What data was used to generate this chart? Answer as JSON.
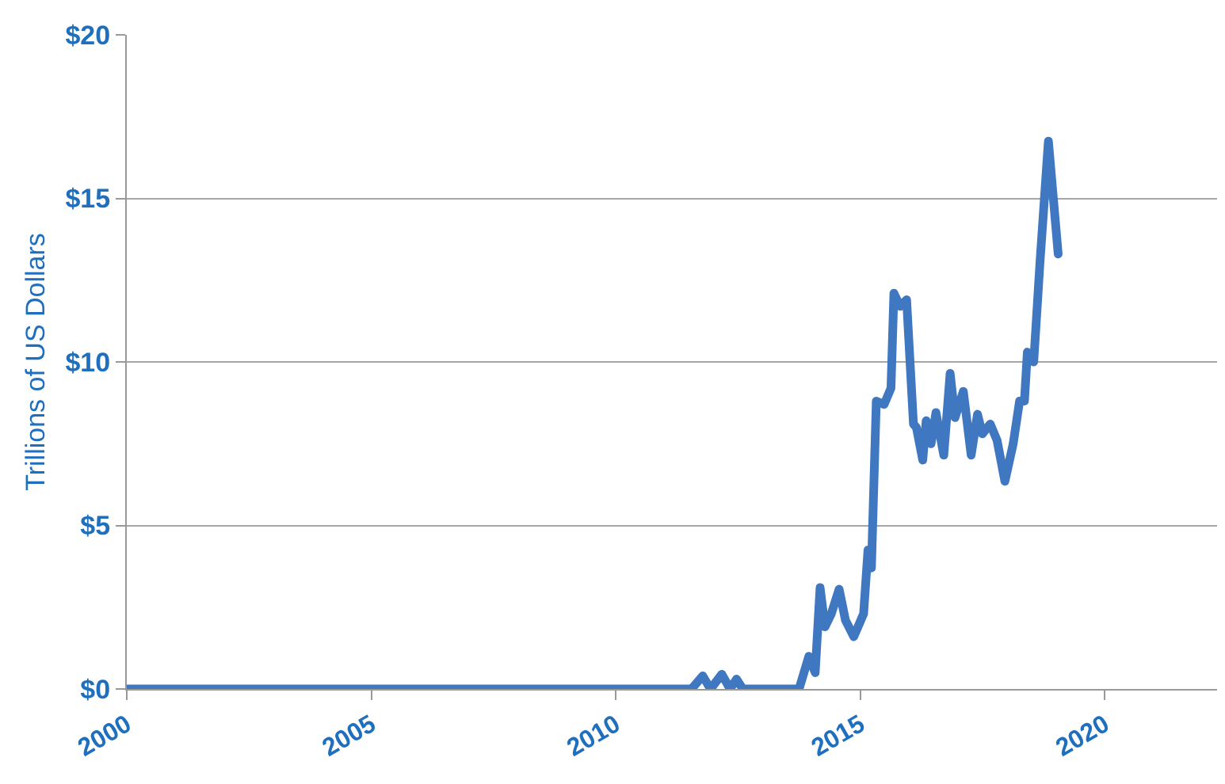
{
  "chart_data": {
    "type": "line",
    "ylabel": "Trillions of US Dollars",
    "x": [
      2000,
      2011.55,
      2011.78,
      2011.94,
      2012.17,
      2012.34,
      2012.47,
      2012.6,
      2013.75,
      2013.95,
      2014.08,
      2014.18,
      2014.28,
      2014.41,
      2014.57,
      2014.7,
      2014.87,
      2015.07,
      2015.16,
      2015.23,
      2015.33,
      2015.49,
      2015.63,
      2015.69,
      2015.82,
      2015.95,
      2016.09,
      2016.15,
      2016.28,
      2016.35,
      2016.45,
      2016.55,
      2016.71,
      2016.84,
      2016.94,
      2017.11,
      2017.27,
      2017.4,
      2017.5,
      2017.66,
      2017.8,
      2017.96,
      2018.13,
      2018.26,
      2018.36,
      2018.42,
      2018.55,
      2018.68,
      2018.85,
      2019.05
    ],
    "series": [
      {
        "color": "#3f78c0",
        "values": [
          0,
          0,
          0.4,
          0,
          0.45,
          0,
          0.3,
          0,
          0,
          1.0,
          0.5,
          3.1,
          1.9,
          2.3,
          3.05,
          2.1,
          1.6,
          2.3,
          4.25,
          3.7,
          8.8,
          8.7,
          9.2,
          12.1,
          11.7,
          11.9,
          8.1,
          8.0,
          7.0,
          8.2,
          7.5,
          8.45,
          7.15,
          9.65,
          8.3,
          9.1,
          7.15,
          8.4,
          7.8,
          8.1,
          7.6,
          6.35,
          7.5,
          8.8,
          8.8,
          10.3,
          10.0,
          13.1,
          16.75,
          13.3
        ]
      }
    ],
    "xlim": [
      2000,
      2022.3
    ],
    "xticks": [
      2000,
      2005,
      2010,
      2015,
      2020
    ],
    "ylim": [
      0,
      20
    ],
    "yticks": [
      {
        "value": 0,
        "label": "$0"
      },
      {
        "value": 5,
        "label": "$5"
      },
      {
        "value": 10,
        "label": "$10"
      },
      {
        "value": 15,
        "label": "$15"
      },
      {
        "value": 20,
        "label": "$20"
      }
    ],
    "grid": "y",
    "marker": "none",
    "line_style": "solid"
  }
}
